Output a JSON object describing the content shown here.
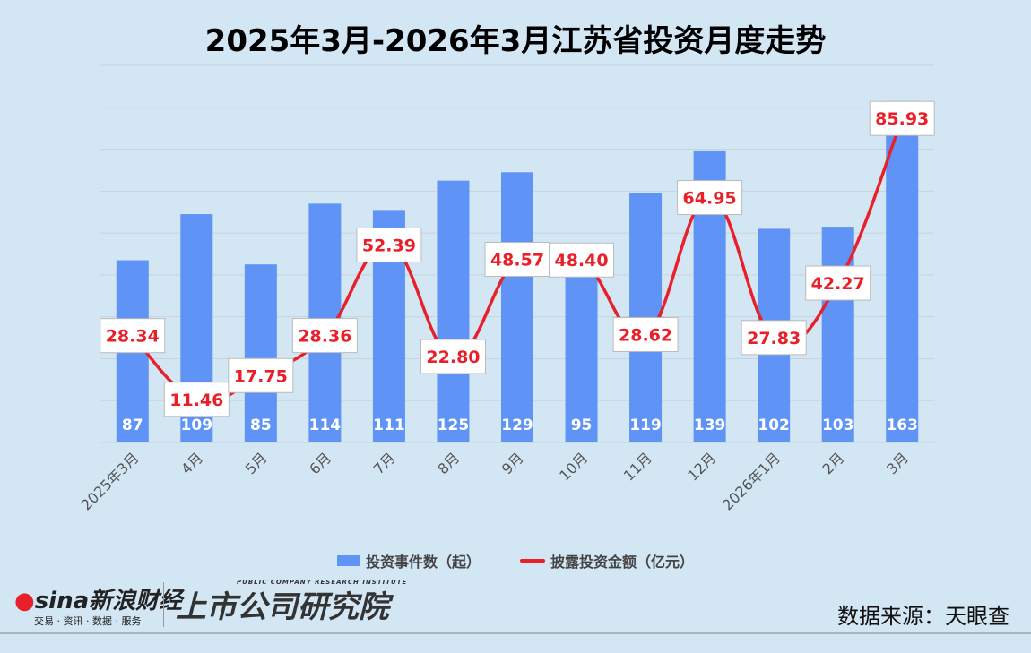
{
  "chart_data": {
    "type": "bar",
    "title": "2025年3月-2026年3月江苏省投资月度走势",
    "categories": [
      "2025年3月",
      "4月",
      "5月",
      "6月",
      "7月",
      "8月",
      "9月",
      "10月",
      "11月",
      "12月",
      "2026年1月",
      "2月",
      "3月"
    ],
    "series": [
      {
        "name": "投资事件数（起）",
        "type": "bar",
        "axis": "left",
        "color": "#5f93f5",
        "values": [
          87,
          109,
          85,
          114,
          111,
          125,
          129,
          95,
          119,
          139,
          102,
          103,
          163
        ]
      },
      {
        "name": "披露投资金额（亿元）",
        "type": "line",
        "axis": "right",
        "color": "#e8202a",
        "values": [
          28.34,
          11.46,
          17.75,
          28.36,
          52.39,
          22.8,
          48.57,
          48.4,
          28.62,
          64.95,
          27.83,
          42.27,
          85.93
        ]
      }
    ],
    "ylim_left": [
      0,
      180
    ],
    "ylim_right": [
      0,
      100
    ],
    "grid": true,
    "legend": "bottom"
  },
  "footer": {
    "sina_logo": "sina新浪财经",
    "sina_tagline": "交易 · 资讯 · 数据 · 服务",
    "institute_logo": "上市公司研究院",
    "institute_en": "PUBLIC COMPANY RESEARCH INSTITUTE",
    "source": "数据来源：天眼查"
  }
}
